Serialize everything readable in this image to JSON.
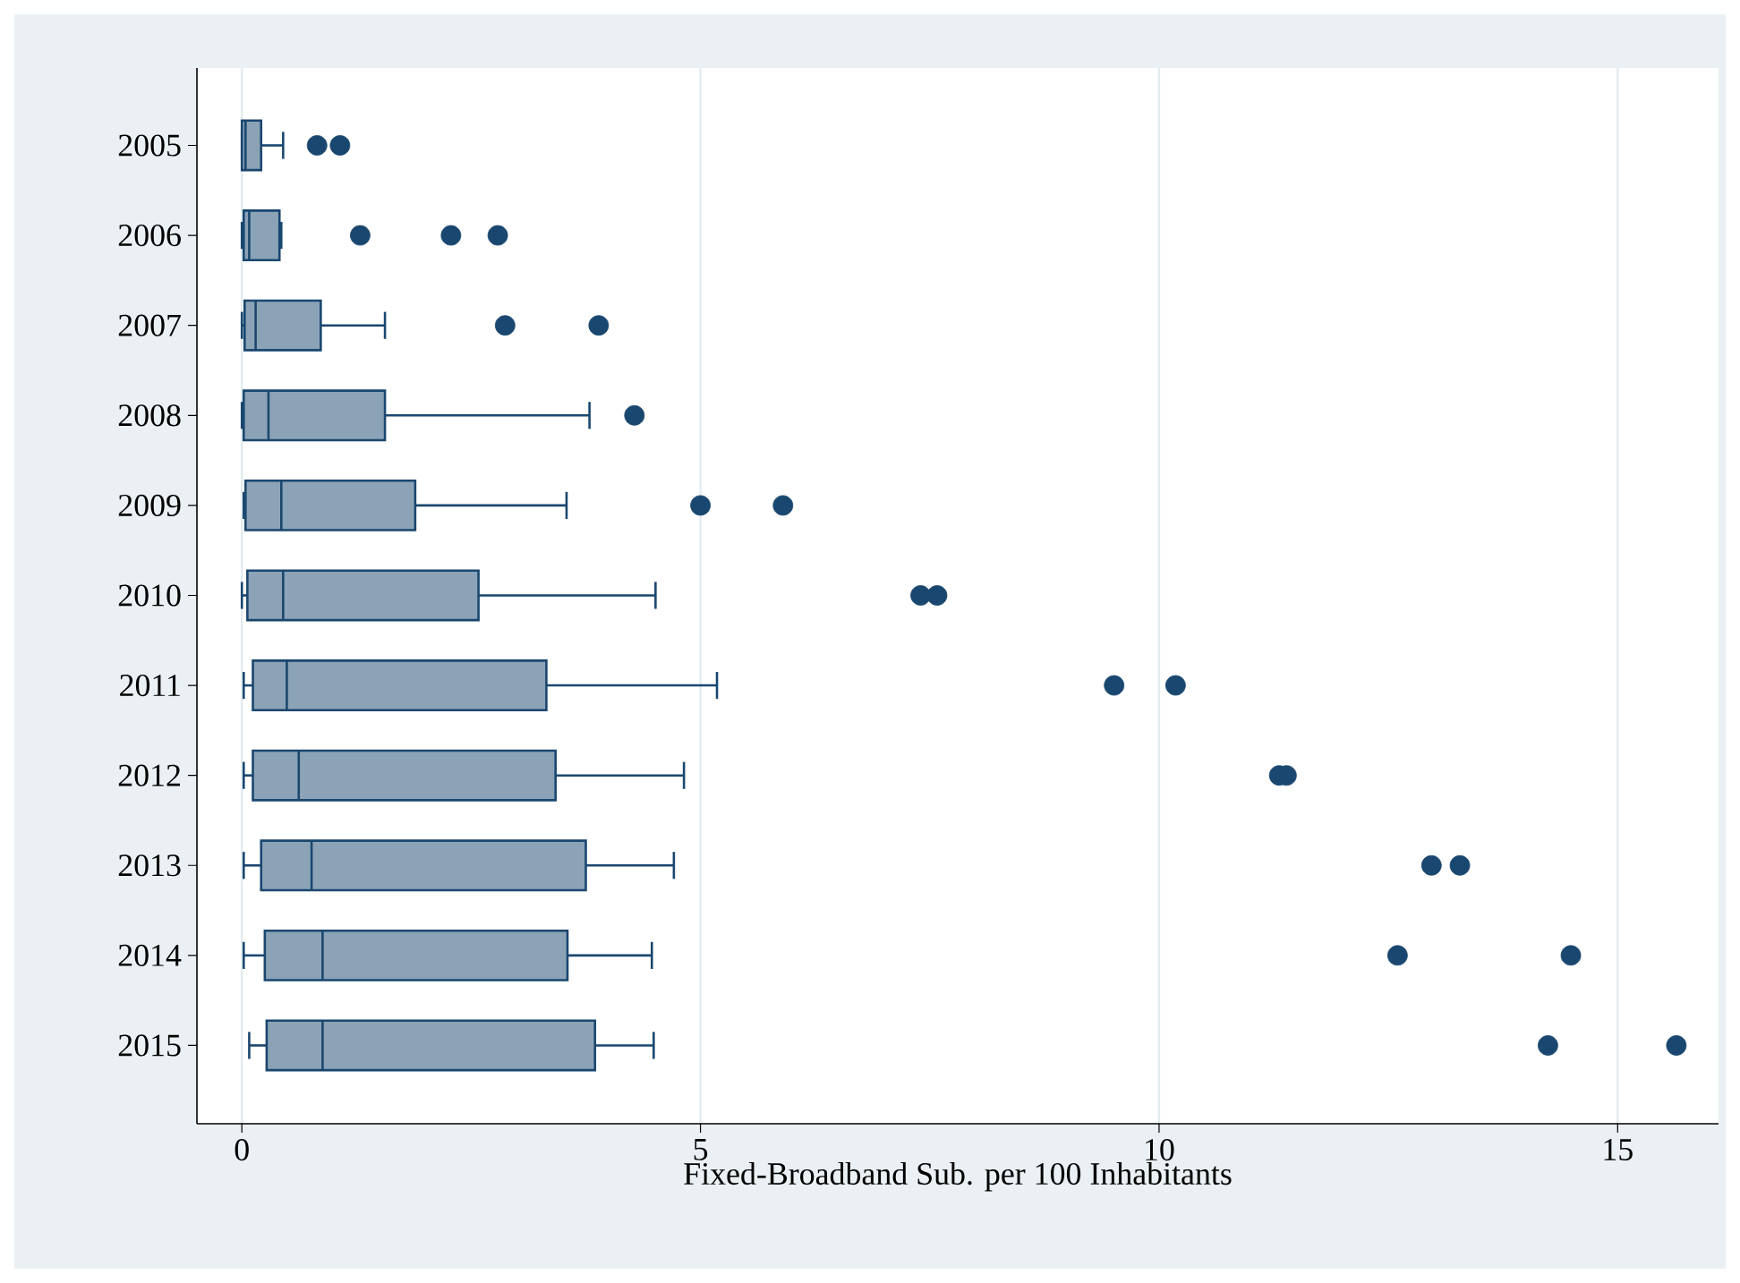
{
  "chart_data": {
    "type": "box",
    "orientation": "horizontal",
    "xlabel": "Fixed-Broadband Sub. per 100 Inhabitants",
    "categories": [
      "2005",
      "2006",
      "2007",
      "2008",
      "2009",
      "2010",
      "2011",
      "2012",
      "2013",
      "2014",
      "2015"
    ],
    "color": "#1a476f",
    "xlim": [
      -0.49,
      16.1
    ],
    "xticks": [
      0,
      5,
      10,
      15
    ],
    "grid": "x",
    "boxes": [
      {
        "low": 0,
        "q1": 0,
        "median": 0.04,
        "q3": 0.21,
        "high": 0.45,
        "outliers": [
          0.82,
          1.07
        ]
      },
      {
        "low": 0,
        "q1": 0.02,
        "median": 0.08,
        "q3": 0.41,
        "high": 0.43,
        "outliers": [
          1.29,
          2.28,
          2.79
        ]
      },
      {
        "low": 0,
        "q1": 0.03,
        "median": 0.15,
        "q3": 0.86,
        "high": 1.56,
        "outliers": [
          2.87,
          3.89
        ]
      },
      {
        "low": 0,
        "q1": 0.02,
        "median": 0.29,
        "q3": 1.56,
        "high": 3.79,
        "outliers": [
          4.28
        ]
      },
      {
        "low": 0.02,
        "q1": 0.04,
        "median": 0.43,
        "q3": 1.89,
        "high": 3.54,
        "outliers": [
          5.0,
          5.9
        ]
      },
      {
        "low": 0,
        "q1": 0.06,
        "median": 0.45,
        "q3": 2.58,
        "high": 4.51,
        "outliers": [
          7.4,
          7.58
        ]
      },
      {
        "low": 0.02,
        "q1": 0.12,
        "median": 0.49,
        "q3": 3.32,
        "high": 5.18,
        "outliers": [
          9.51,
          10.18
        ]
      },
      {
        "low": 0.02,
        "q1": 0.12,
        "median": 0.62,
        "q3": 3.42,
        "high": 4.82,
        "outliers": [
          11.31,
          11.39
        ]
      },
      {
        "low": 0.02,
        "q1": 0.21,
        "median": 0.76,
        "q3": 3.75,
        "high": 4.71,
        "outliers": [
          12.97,
          13.28
        ]
      },
      {
        "low": 0.02,
        "q1": 0.25,
        "median": 0.88,
        "q3": 3.55,
        "high": 4.47,
        "outliers": [
          12.6,
          14.49
        ]
      },
      {
        "low": 0.08,
        "q1": 0.27,
        "median": 0.88,
        "q3": 3.85,
        "high": 4.49,
        "outliers": [
          14.24,
          15.64
        ]
      }
    ]
  }
}
